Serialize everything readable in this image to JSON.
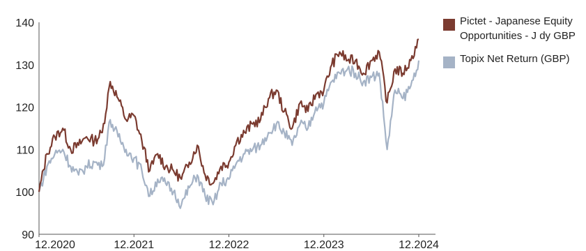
{
  "chart_data": {
    "type": "line",
    "title": "",
    "xlabel": "",
    "ylabel": "",
    "ylim": [
      90,
      140
    ],
    "yticks": [
      "90",
      "100",
      "110",
      "120",
      "130",
      "140"
    ],
    "xlim": [
      "2020-12",
      "2024-12"
    ],
    "xticks": [
      {
        "label": "12.2020",
        "value": "2020-12"
      },
      {
        "label": "12.2021",
        "value": "2021-12"
      },
      {
        "label": "12.2022",
        "value": "2022-12"
      },
      {
        "label": "12.2023",
        "value": "2023-12"
      },
      {
        "label": "12.2024",
        "value": "2024-12"
      }
    ],
    "grid": false,
    "legend_position": "right",
    "series": [
      {
        "name": "Pictet - Japanese Equity Opportunities - J dy GBP",
        "color": "#7b3b30",
        "points": [
          [
            "2020-12",
            100.0
          ],
          [
            "2021-01",
            109.0
          ],
          [
            "2021-02",
            113.0
          ],
          [
            "2021-03",
            115.0
          ],
          [
            "2021-04",
            110.0
          ],
          [
            "2021-05",
            111.0
          ],
          [
            "2021-06",
            113.0
          ],
          [
            "2021-07",
            112.0
          ],
          [
            "2021-08",
            114.0
          ],
          [
            "2021-09",
            126.0
          ],
          [
            "2021-10",
            122.0
          ],
          [
            "2021-11",
            117.0
          ],
          [
            "2021-12",
            118.0
          ],
          [
            "2022-01",
            112.0
          ],
          [
            "2022-02",
            105.0
          ],
          [
            "2022-03",
            109.0
          ],
          [
            "2022-04",
            106.0
          ],
          [
            "2022-05",
            105.0
          ],
          [
            "2022-06",
            103.0
          ],
          [
            "2022-07",
            107.0
          ],
          [
            "2022-08",
            111.0
          ],
          [
            "2022-09",
            104.0
          ],
          [
            "2022-10",
            102.0
          ],
          [
            "2022-11",
            106.0
          ],
          [
            "2022-12",
            107.0
          ],
          [
            "2023-01",
            112.0
          ],
          [
            "2023-02",
            114.0
          ],
          [
            "2023-03",
            116.0
          ],
          [
            "2023-04",
            117.0
          ],
          [
            "2023-05",
            122.0
          ],
          [
            "2023-06",
            124.0
          ],
          [
            "2023-07",
            119.0
          ],
          [
            "2023-08",
            115.0
          ],
          [
            "2023-09",
            121.0
          ],
          [
            "2023-10",
            119.0
          ],
          [
            "2023-11",
            123.0
          ],
          [
            "2023-12",
            124.0
          ],
          [
            "2024-01",
            130.0
          ],
          [
            "2024-02",
            133.0
          ],
          [
            "2024-03",
            131.0
          ],
          [
            "2024-04",
            131.0
          ],
          [
            "2024-05",
            128.0
          ],
          [
            "2024-06",
            131.0
          ],
          [
            "2024-07",
            133.0
          ],
          [
            "2024-08",
            121.0
          ],
          [
            "2024-09",
            129.0
          ],
          [
            "2024-10",
            128.0
          ],
          [
            "2024-11",
            131.0
          ],
          [
            "2024-12",
            136.0
          ]
        ]
      },
      {
        "name": "Topix Net Return (GBP)",
        "color": "#a5b3c6",
        "points": [
          [
            "2020-12",
            100.0
          ],
          [
            "2021-01",
            106.0
          ],
          [
            "2021-02",
            109.0
          ],
          [
            "2021-03",
            110.0
          ],
          [
            "2021-04",
            106.0
          ],
          [
            "2021-05",
            104.0
          ],
          [
            "2021-06",
            106.0
          ],
          [
            "2021-07",
            107.0
          ],
          [
            "2021-08",
            106.0
          ],
          [
            "2021-09",
            117.0
          ],
          [
            "2021-10",
            113.0
          ],
          [
            "2021-11",
            110.0
          ],
          [
            "2021-12",
            108.0
          ],
          [
            "2022-01",
            105.0
          ],
          [
            "2022-02",
            99.0
          ],
          [
            "2022-03",
            103.0
          ],
          [
            "2022-04",
            102.0
          ],
          [
            "2022-05",
            100.0
          ],
          [
            "2022-06",
            97.0
          ],
          [
            "2022-07",
            101.0
          ],
          [
            "2022-08",
            104.0
          ],
          [
            "2022-09",
            99.0
          ],
          [
            "2022-10",
            97.0
          ],
          [
            "2022-11",
            102.0
          ],
          [
            "2022-12",
            103.0
          ],
          [
            "2023-01",
            107.0
          ],
          [
            "2023-02",
            109.0
          ],
          [
            "2023-03",
            110.0
          ],
          [
            "2023-04",
            111.0
          ],
          [
            "2023-05",
            114.0
          ],
          [
            "2023-06",
            116.0
          ],
          [
            "2023-07",
            114.0
          ],
          [
            "2023-08",
            111.0
          ],
          [
            "2023-09",
            116.0
          ],
          [
            "2023-10",
            115.0
          ],
          [
            "2023-11",
            120.0
          ],
          [
            "2023-12",
            121.0
          ],
          [
            "2024-01",
            126.0
          ],
          [
            "2024-02",
            128.0
          ],
          [
            "2024-03",
            129.0
          ],
          [
            "2024-04",
            128.0
          ],
          [
            "2024-05",
            126.0
          ],
          [
            "2024-06",
            127.0
          ],
          [
            "2024-07",
            128.0
          ],
          [
            "2024-08",
            110.0
          ],
          [
            "2024-09",
            124.0
          ],
          [
            "2024-10",
            122.0
          ],
          [
            "2024-11",
            125.0
          ],
          [
            "2024-12",
            131.0
          ]
        ]
      }
    ]
  }
}
